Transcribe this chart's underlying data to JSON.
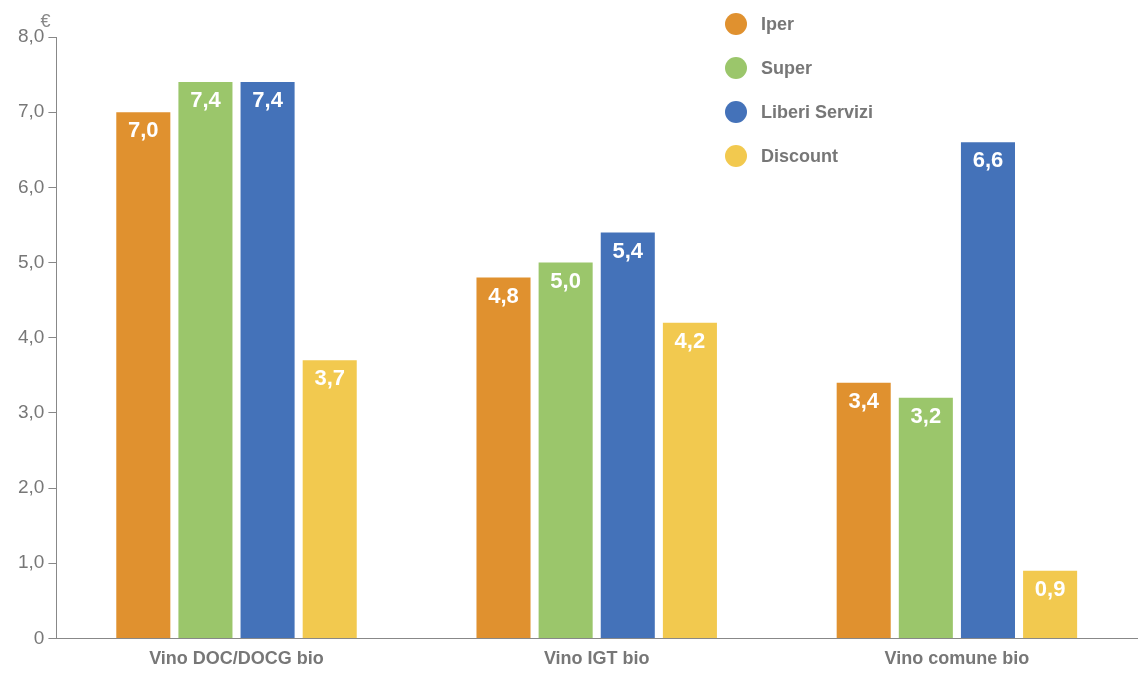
{
  "chart_data": {
    "type": "bar",
    "ylabel": "€",
    "categories": [
      "Vino DOC/DOCG bio",
      "Vino IGT bio",
      "Vino comune bio"
    ],
    "series": [
      {
        "name": "Iper",
        "color": "#e0912f",
        "values": [
          7.0,
          4.8,
          3.4
        ],
        "value_labels": [
          "7,0",
          "4,8",
          "3,4"
        ]
      },
      {
        "name": "Super",
        "color": "#9bc66b",
        "values": [
          7.4,
          5.0,
          3.2
        ],
        "value_labels": [
          "7,4",
          "5,0",
          "3,2"
        ]
      },
      {
        "name": "Liberi Servizi",
        "color": "#4472b9",
        "values": [
          7.4,
          5.4,
          6.6
        ],
        "value_labels": [
          "7,4",
          "5,4",
          "6,6"
        ]
      },
      {
        "name": "Discount",
        "color": "#f2c94f",
        "values": [
          3.7,
          4.2,
          0.9
        ],
        "value_labels": [
          "3,7",
          "4,2",
          "0,9"
        ]
      }
    ],
    "ylim": [
      0,
      8
    ],
    "yticks": [
      0,
      {
        "value": 1,
        "label": "1,0"
      },
      {
        "value": 2,
        "label": "2,0"
      },
      {
        "value": 3,
        "label": "3,0"
      },
      {
        "value": 4,
        "label": "4,0"
      },
      {
        "value": 5,
        "label": "5,0"
      },
      {
        "value": 6,
        "label": "6,0"
      },
      {
        "value": 7,
        "label": "7,0"
      },
      {
        "value": 8,
        "label": "8,0"
      }
    ],
    "grid": false,
    "legend": "top right"
  }
}
